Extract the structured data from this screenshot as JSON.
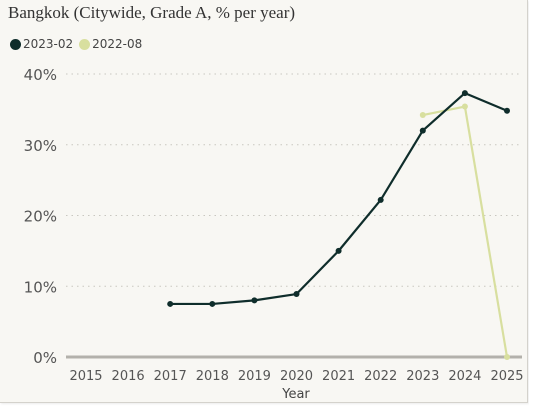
{
  "title": "Bangkok (Citywide, Grade A, % per year)",
  "legend": [
    {
      "label": "2023-02",
      "color": "#0f2d2b"
    },
    {
      "label": "2022-08",
      "color": "#d8df9f"
    }
  ],
  "chart_data": {
    "type": "line",
    "title": "Bangkok (Citywide, Grade A, % per year)",
    "xlabel": "Year",
    "ylabel": "",
    "categories": [
      "2015",
      "2016",
      "2017",
      "2018",
      "2019",
      "2020",
      "2021",
      "2022",
      "2023",
      "2024",
      "2025"
    ],
    "y_ticks": [
      "0%",
      "10%",
      "20%",
      "30%",
      "40%"
    ],
    "ylim": [
      0,
      40
    ],
    "grid": "horizontal dotted",
    "legend_position": "top-left",
    "series": [
      {
        "name": "2023-02",
        "color": "#0f2d2b",
        "x": [
          "2017",
          "2018",
          "2019",
          "2020",
          "2021",
          "2022",
          "2023",
          "2024",
          "2025"
        ],
        "values": [
          7.5,
          7.5,
          8.0,
          8.9,
          15.0,
          22.2,
          32.0,
          37.3,
          34.8
        ]
      },
      {
        "name": "2022-08",
        "color": "#d8df9f",
        "x": [
          "2023",
          "2024",
          "2025"
        ],
        "values": [
          34.2,
          35.4,
          0.0
        ]
      }
    ]
  }
}
